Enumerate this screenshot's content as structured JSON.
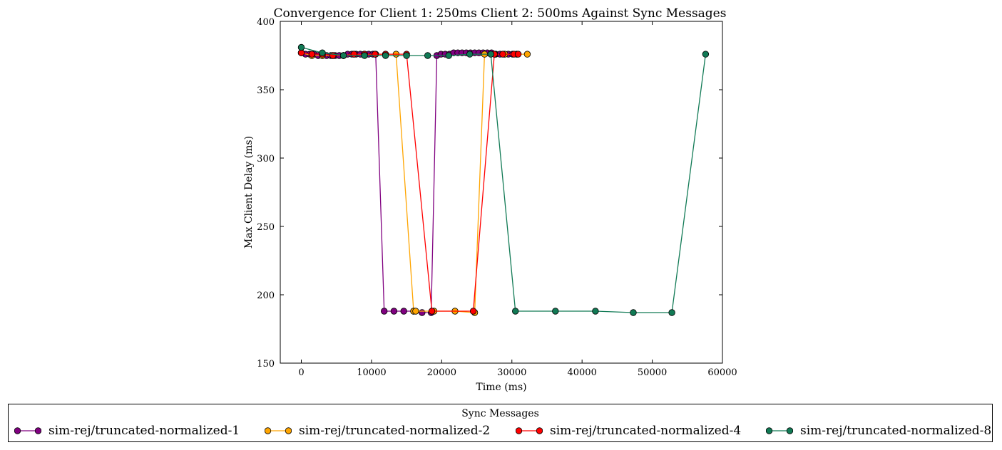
{
  "chart_data": {
    "type": "line",
    "title": "Convergence for Client 1: 250ms Client 2: 500ms Against Sync Messages",
    "xlabel": "Time (ms)",
    "ylabel": "Max Client Delay (ms)",
    "xlim": [
      -3000,
      60000
    ],
    "ylim": [
      150,
      400
    ],
    "xticks": [
      0,
      10000,
      20000,
      30000,
      40000,
      50000,
      60000
    ],
    "yticks": [
      150,
      200,
      250,
      300,
      350,
      400
    ],
    "xtick_labels": [
      "0",
      "10000",
      "20000",
      "30000",
      "40000",
      "50000",
      "60000"
    ],
    "ytick_labels": [
      "150",
      "200",
      "250",
      "300",
      "350",
      "400"
    ],
    "grid": false,
    "legend": {
      "title": "Sync Messages",
      "placement": "below plot, horizontal"
    },
    "series": [
      {
        "name": "sim-rej/truncated-normalized-1",
        "color": "#800080",
        "x": [
          0,
          600,
          1200,
          1800,
          2400,
          3000,
          3600,
          4200,
          4800,
          5400,
          6000,
          6600,
          7200,
          7800,
          8400,
          9000,
          9600,
          10200,
          10600,
          11800,
          13200,
          14600,
          16000,
          17200,
          18500,
          19300,
          19900,
          20500,
          21100,
          21700,
          22300,
          22900,
          23500,
          24100,
          24700,
          25300,
          25900,
          26500,
          27100,
          27700,
          28300,
          28900,
          29500,
          30100,
          30700
        ],
        "y": [
          377,
          376,
          376,
          376,
          375,
          375,
          375,
          375,
          375,
          375,
          375,
          376,
          376,
          376,
          376,
          376,
          376,
          376,
          376,
          188,
          188,
          188,
          188,
          187,
          187,
          375,
          376,
          376,
          376,
          377,
          377,
          377,
          377,
          377,
          377,
          377,
          377,
          377,
          377,
          376,
          376,
          376,
          376,
          376,
          376
        ]
      },
      {
        "name": "sim-rej/truncated-normalized-2",
        "color": "#FFA500",
        "x": [
          0,
          1500,
          3000,
          4500,
          6000,
          7500,
          9000,
          10500,
          12000,
          13500,
          16000,
          16300,
          18900,
          21900,
          24700,
          26100,
          27600,
          29000,
          30700,
          32200
        ],
        "y": [
          377,
          375,
          375,
          375,
          375,
          376,
          376,
          376,
          376,
          376,
          188,
          188,
          188,
          188,
          187,
          376,
          376,
          376,
          376,
          376
        ]
      },
      {
        "name": "sim-rej/truncated-normalized-4",
        "color": "#FF0000",
        "x": [
          0,
          1500,
          3000,
          4500,
          6000,
          7500,
          9000,
          10500,
          12000,
          15000,
          18600,
          24500,
          27500,
          28700,
          30300,
          30900
        ],
        "y": [
          377,
          376,
          376,
          375,
          375,
          376,
          376,
          376,
          376,
          376,
          188,
          188,
          376,
          376,
          376,
          376
        ]
      },
      {
        "name": "sim-rej/truncated-normalized-8",
        "color": "#117A55",
        "x": [
          0,
          3000,
          6000,
          9000,
          12000,
          15000,
          18000,
          21000,
          24000,
          27000,
          30500,
          36200,
          41900,
          47300,
          52800,
          57600
        ],
        "y": [
          381,
          377,
          375,
          375,
          375,
          375,
          375,
          375,
          376,
          376,
          188,
          188,
          188,
          187,
          187,
          376
        ]
      }
    ]
  }
}
